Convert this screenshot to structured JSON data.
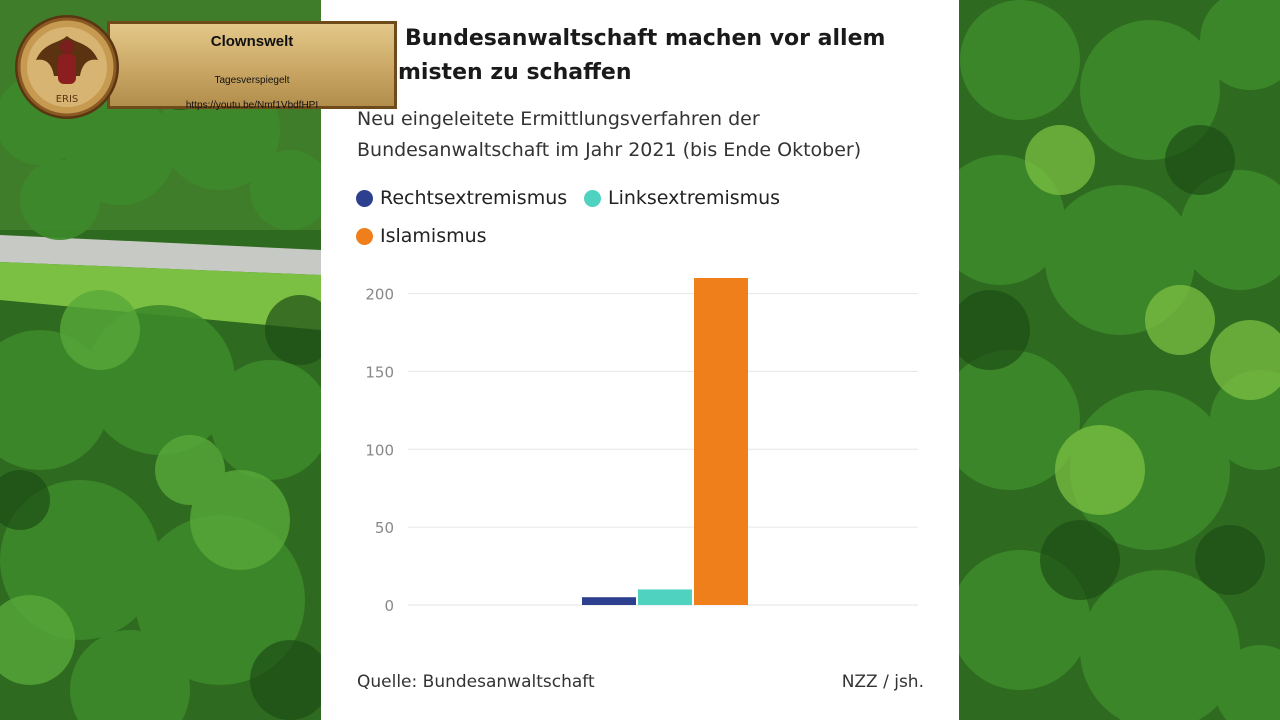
{
  "headline": {
    "line1": "Bundesanwaltschaft machen vor allem",
    "line2": "misten zu schaffen"
  },
  "chart_data": {
    "type": "bar",
    "subtitle_line1": "Neu eingeleitete Ermittlungsverfahren der",
    "subtitle_line2": "Bundesanwaltschaft im Jahr 2021 (bis Ende Oktober)",
    "categories": [
      ""
    ],
    "series": [
      {
        "name": "Rechtsextremismus",
        "values": [
          5
        ],
        "color": "#2d3f8f"
      },
      {
        "name": "Linksextremismus",
        "values": [
          10
        ],
        "color": "#4fd3c0"
      },
      {
        "name": "Islamismus",
        "values": [
          210
        ],
        "color": "#ef7f1a"
      }
    ],
    "ylim": [
      0,
      210
    ],
    "yticks": [
      0,
      50,
      100,
      150,
      200
    ],
    "grid": true,
    "legend_position": "top-left",
    "source": "Quelle: Bundesanwaltschaft",
    "credit": "NZZ / jsh."
  },
  "overlay": {
    "title": "Clownswelt",
    "subtitle": "Tagesverspiegelt",
    "url": "https://youtu.be/Nmf1VbdfHPI",
    "medal_text": "ERIS",
    "colors": {
      "plate": "#caa764",
      "border": "#6f4a1a"
    }
  },
  "background": {
    "description_color": "#2f6b22"
  }
}
